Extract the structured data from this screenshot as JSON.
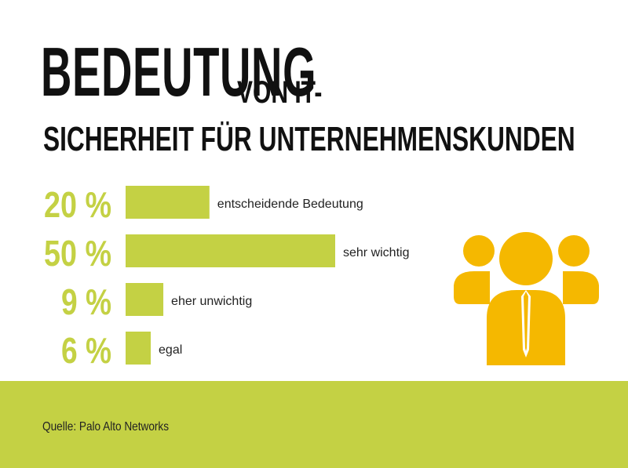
{
  "title": {
    "big": "BEDEUTUNG",
    "small": "VON IT-",
    "line2": "SICHERHEIT FÜR UNTERNEHMENSKUNDEN"
  },
  "source": "Quelle: Palo Alto Networks",
  "colors": {
    "bar": "#c4d144",
    "value_text": "#c4d144",
    "icon": "#f5b800",
    "footer": "#c4d144"
  },
  "icon": "business-people-icon",
  "chart_data": {
    "type": "bar",
    "orientation": "horizontal",
    "categories": [
      "entscheidende Bedeutung",
      "sehr wichtig",
      "eher unwichtig",
      "egal"
    ],
    "values": [
      20,
      50,
      9,
      6
    ],
    "value_labels": [
      "20 %",
      "50 %",
      "9 %",
      "6 %"
    ],
    "title": "BEDEUTUNG VON IT-SICHERHEIT FÜR UNTERNEHMENSKUNDEN",
    "xlabel": "",
    "ylabel": "",
    "unit": "%",
    "grid": false,
    "legend": "none"
  }
}
